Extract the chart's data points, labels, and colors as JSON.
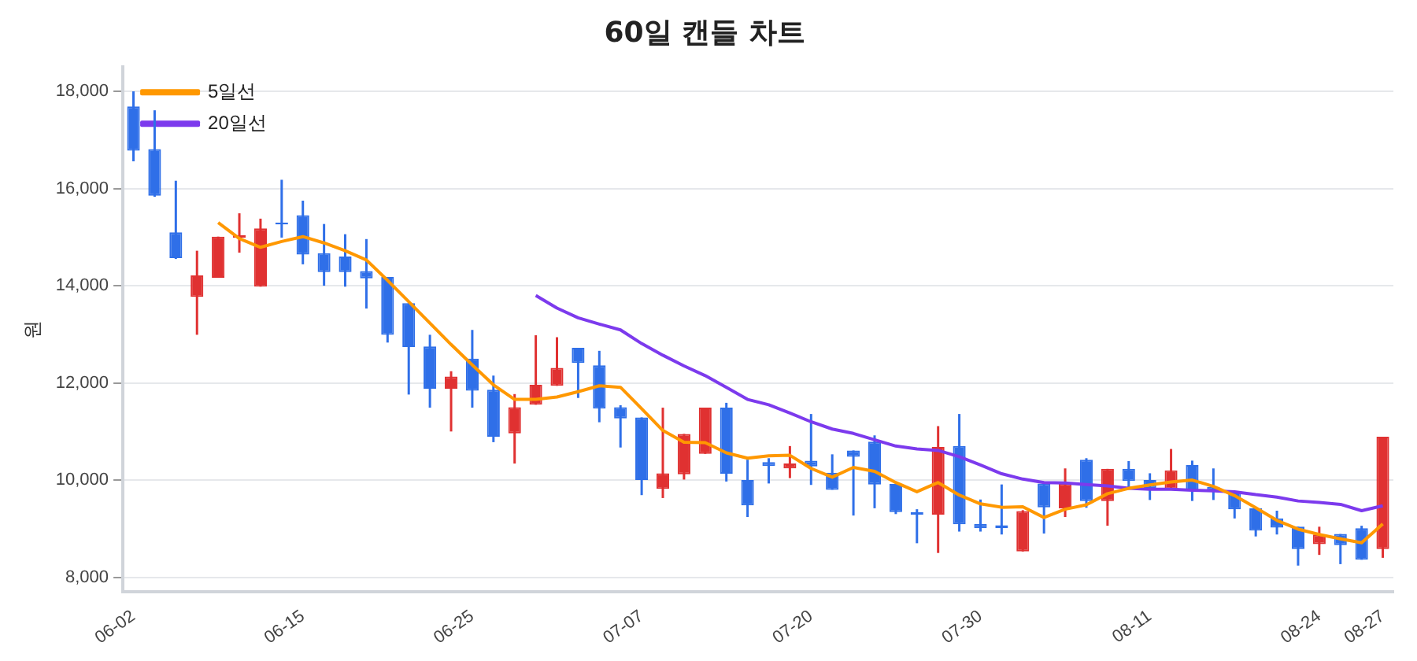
{
  "chart_data": {
    "type": "candlestick",
    "title": "60일 캔들 차트",
    "ylabel": "원",
    "categories": [
      "06-02",
      null,
      null,
      null,
      null,
      null,
      null,
      null,
      "06-15",
      null,
      null,
      null,
      null,
      null,
      null,
      null,
      "06-25",
      null,
      null,
      null,
      null,
      null,
      null,
      null,
      "07-07",
      null,
      null,
      null,
      null,
      null,
      null,
      null,
      "07-20",
      null,
      null,
      null,
      null,
      null,
      null,
      null,
      "07-30",
      null,
      null,
      null,
      null,
      null,
      null,
      null,
      "08-11",
      null,
      null,
      null,
      null,
      null,
      null,
      null,
      "08-24",
      null,
      null,
      "08-27"
    ],
    "ohlc": [
      [
        17690,
        18000,
        16560,
        16780
      ],
      [
        16810,
        17610,
        15830,
        15850
      ],
      [
        15100,
        16160,
        14550,
        14570
      ],
      [
        13770,
        14720,
        12990,
        14210
      ],
      [
        14165,
        15010,
        14165,
        15010
      ],
      [
        14990,
        15490,
        14680,
        15040
      ],
      [
        13980,
        15380,
        13980,
        15180
      ],
      [
        15300,
        16180,
        14990,
        15260
      ],
      [
        15450,
        15750,
        14440,
        14640
      ],
      [
        14670,
        15270,
        14000,
        14280
      ],
      [
        14600,
        15060,
        13980,
        14280
      ],
      [
        14300,
        14960,
        13530,
        14150
      ],
      [
        14180,
        14180,
        12830,
        12990
      ],
      [
        13640,
        13640,
        11760,
        12740
      ],
      [
        12750,
        12990,
        11490,
        11880
      ],
      [
        11880,
        12240,
        11000,
        12130
      ],
      [
        12500,
        13090,
        11490,
        11840
      ],
      [
        11860,
        12150,
        10780,
        10890
      ],
      [
        10960,
        11770,
        10340,
        11500
      ],
      [
        11550,
        12980,
        11550,
        11960
      ],
      [
        11940,
        12940,
        11940,
        12310
      ],
      [
        12720,
        12720,
        11690,
        12410
      ],
      [
        12360,
        12660,
        11190,
        11470
      ],
      [
        11500,
        11540,
        10670,
        11270
      ],
      [
        11290,
        11290,
        9690,
        10000
      ],
      [
        9820,
        11490,
        9630,
        10140
      ],
      [
        10120,
        10950,
        10010,
        10950
      ],
      [
        10540,
        11490,
        10540,
        11490
      ],
      [
        11490,
        11590,
        9970,
        10130
      ],
      [
        10000,
        10420,
        9240,
        9480
      ],
      [
        10370,
        10450,
        9930,
        10290
      ],
      [
        10240,
        10700,
        10040,
        10340
      ],
      [
        10400,
        11360,
        9900,
        10280
      ],
      [
        10150,
        10530,
        9800,
        9800
      ],
      [
        10610,
        10610,
        9270,
        10480
      ],
      [
        10790,
        10920,
        9420,
        9910
      ],
      [
        9920,
        9920,
        9300,
        9340
      ],
      [
        9340,
        9400,
        8700,
        9290
      ],
      [
        9290,
        11110,
        8500,
        10680
      ],
      [
        10700,
        11360,
        8940,
        9090
      ],
      [
        9100,
        9600,
        8940,
        9010
      ],
      [
        9070,
        9910,
        8880,
        9010
      ],
      [
        8530,
        9380,
        8530,
        9360
      ],
      [
        9930,
        9930,
        8900,
        9440
      ],
      [
        9420,
        10240,
        9240,
        9930
      ],
      [
        10420,
        10450,
        9430,
        9570
      ],
      [
        9570,
        10230,
        9060,
        10230
      ],
      [
        10230,
        10390,
        9830,
        9980
      ],
      [
        10000,
        10140,
        9590,
        9830
      ],
      [
        9810,
        10640,
        9810,
        10200
      ],
      [
        10310,
        10400,
        9570,
        9790
      ],
      [
        9860,
        10240,
        9590,
        9770
      ],
      [
        9760,
        9760,
        9210,
        9400
      ],
      [
        9420,
        9420,
        8840,
        8960
      ],
      [
        9210,
        9370,
        8880,
        9020
      ],
      [
        9040,
        9040,
        8240,
        8580
      ],
      [
        8680,
        9040,
        8460,
        8880
      ],
      [
        8890,
        8890,
        8270,
        8660
      ],
      [
        9010,
        9060,
        8360,
        8360
      ],
      [
        8580,
        10890,
        8400,
        10890
      ]
    ],
    "colors": [
      "#2f6fe8",
      "#2f6fe8",
      "#2f6fe8",
      "#e03131",
      "#e03131",
      "#e03131",
      "#e03131",
      "#2f6fe8",
      "#2f6fe8",
      "#2f6fe8",
      "#2f6fe8",
      "#2f6fe8",
      "#2f6fe8",
      "#2f6fe8",
      "#2f6fe8",
      "#e03131",
      "#2f6fe8",
      "#2f6fe8",
      "#e03131",
      "#e03131",
      "#e03131",
      "#2f6fe8",
      "#2f6fe8",
      "#2f6fe8",
      "#2f6fe8",
      "#e03131",
      "#e03131",
      "#e03131",
      "#2f6fe8",
      "#2f6fe8",
      "#2f6fe8",
      "#e03131",
      "#2f6fe8",
      "#2f6fe8",
      "#2f6fe8",
      "#2f6fe8",
      "#2f6fe8",
      "#2f6fe8",
      "#e03131",
      "#2f6fe8",
      "#2f6fe8",
      "#2f6fe8",
      "#e03131",
      "#2f6fe8",
      "#e03131",
      "#2f6fe8",
      "#e03131",
      "#2f6fe8",
      "#2f6fe8",
      "#e03131",
      "#2f6fe8",
      "#2f6fe8",
      "#2f6fe8",
      "#2f6fe8",
      "#2f6fe8",
      "#2f6fe8",
      "#e03131",
      "#2f6fe8",
      "#2f6fe8",
      "#e03131"
    ],
    "series": [
      {
        "name": "5일선",
        "type": "line",
        "color": "#ff9800",
        "values": [
          null,
          null,
          null,
          null,
          15300,
          14970,
          14790,
          14910,
          15010,
          14880,
          14720,
          14530,
          14110,
          13670,
          13230,
          12790,
          12370,
          11960,
          11660,
          11660,
          11710,
          11820,
          11940,
          11910,
          11470,
          11020,
          10780,
          10770,
          10560,
          10450,
          10500,
          10510,
          10240,
          10060,
          10260,
          10180,
          9950,
          9760,
          9950,
          9690,
          9510,
          9440,
          9450,
          9230,
          9400,
          9490,
          9720,
          9830,
          9900,
          9960,
          10000,
          9870,
          9680,
          9430,
          9170,
          8990,
          8880,
          8790,
          8710,
          9100
        ]
      },
      {
        "name": "20일선",
        "type": "line",
        "color": "#7c3aed",
        "values": [
          null,
          null,
          null,
          null,
          null,
          null,
          null,
          null,
          null,
          null,
          null,
          null,
          null,
          null,
          null,
          null,
          null,
          null,
          null,
          13800,
          13540,
          13340,
          13210,
          13090,
          12810,
          12570,
          12350,
          12150,
          11910,
          11660,
          11550,
          11380,
          11200,
          11050,
          10960,
          10830,
          10700,
          10640,
          10610,
          10480,
          10310,
          10130,
          10020,
          9950,
          9940,
          9910,
          9880,
          9830,
          9810,
          9810,
          9790,
          9780,
          9760,
          9700,
          9650,
          9570,
          9540,
          9500,
          9370,
          9470
        ]
      }
    ],
    "ylim": [
      7700,
      18500
    ],
    "yticks": [
      {
        "value": 8000,
        "label": "8,000"
      },
      {
        "value": 10000,
        "label": "10,000"
      },
      {
        "value": 12000,
        "label": "12,000"
      },
      {
        "value": 14000,
        "label": "14,000"
      },
      {
        "value": 16000,
        "label": "16,000"
      },
      {
        "value": 18000,
        "label": "18,000"
      }
    ],
    "grid": "y",
    "legend": "top left"
  }
}
